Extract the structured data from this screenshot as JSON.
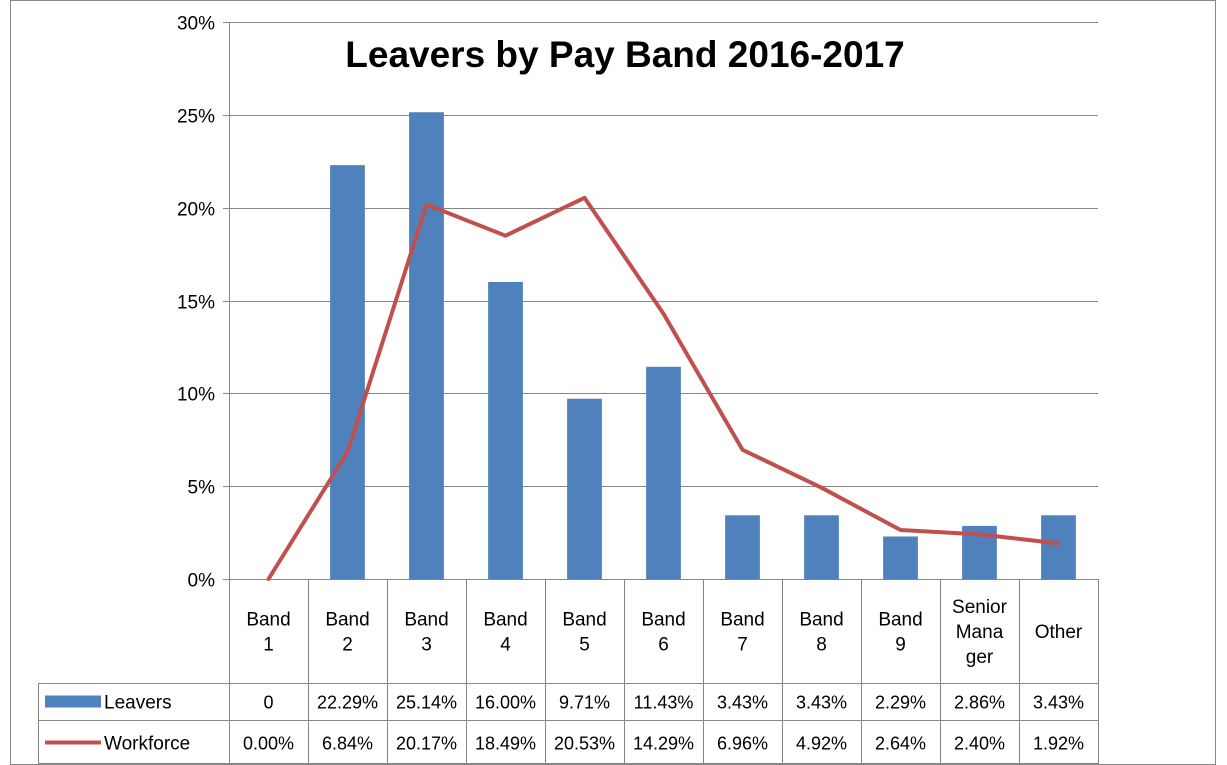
{
  "chart_data": {
    "type": "bar",
    "title": "Leavers by Pay Band 2016-2017",
    "categories": [
      [
        "Band",
        "1"
      ],
      [
        "Band",
        "2"
      ],
      [
        "Band",
        "3"
      ],
      [
        "Band",
        "4"
      ],
      [
        "Band",
        "5"
      ],
      [
        "Band",
        "6"
      ],
      [
        "Band",
        "7"
      ],
      [
        "Band",
        "8"
      ],
      [
        "Band",
        "9"
      ],
      [
        "Senior",
        "Mana",
        "ger"
      ],
      [
        "Other"
      ]
    ],
    "y_ticks": [
      "0%",
      "5%",
      "10%",
      "15%",
      "20%",
      "25%",
      "30%"
    ],
    "ylim": [
      0,
      30
    ],
    "grid": true,
    "legend": "data-table",
    "series": [
      {
        "name": "Leavers",
        "kind": "bar",
        "color": "#4F81BD",
        "values": [
          0,
          22.29,
          25.14,
          16.0,
          9.71,
          11.43,
          3.43,
          3.43,
          2.29,
          2.86,
          3.43
        ],
        "labels": [
          "0",
          "22.29%",
          "25.14%",
          "16.00%",
          "9.71%",
          "11.43%",
          "3.43%",
          "3.43%",
          "2.29%",
          "2.86%",
          "3.43%"
        ]
      },
      {
        "name": "Workforce",
        "kind": "line",
        "color": "#C0504D",
        "values": [
          0.0,
          6.84,
          20.17,
          18.49,
          20.53,
          14.29,
          6.96,
          4.92,
          2.64,
          2.4,
          1.92
        ],
        "labels": [
          "0.00%",
          "6.84%",
          "20.17%",
          "18.49%",
          "20.53%",
          "14.29%",
          "6.96%",
          "4.92%",
          "2.64%",
          "2.40%",
          "1.92%"
        ]
      }
    ]
  }
}
